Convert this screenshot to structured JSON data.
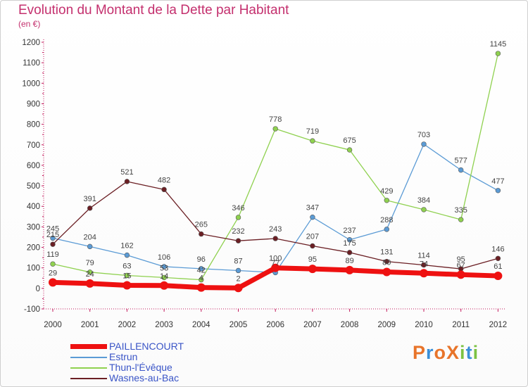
{
  "title": "Evolution du Montant de la Dette par Habitant",
  "subtitle": "(en €)",
  "logo": {
    "text": "ProXiti",
    "colors": [
      "#e8742a",
      "#3a8fd8",
      "#e8742a",
      "#e8742a",
      "#7cc242",
      "#3a8fd8",
      "#7cc242"
    ]
  },
  "chart_data": {
    "type": "line",
    "title": "Evolution du Montant de la Dette par Habitant",
    "subtitle": "(en €)",
    "xlabel": "",
    "ylabel": "",
    "ylim": [
      -100,
      1200
    ],
    "grid": false,
    "legend_position": "bottom-left",
    "x": [
      "2000",
      "2001",
      "2002",
      "2003",
      "2004",
      "2005",
      "2006",
      "2007",
      "2008",
      "2009",
      "2010",
      "2011",
      "2012"
    ],
    "y_ticks": [
      -100,
      0,
      100,
      200,
      300,
      400,
      500,
      600,
      700,
      800,
      900,
      1000,
      1100,
      1200
    ],
    "series": [
      {
        "name": "PAILLENCOURT",
        "color": "#ee1111",
        "values": [
          29,
          24,
          15,
          14,
          4,
          2,
          100,
          95,
          89,
          80,
          74,
          67,
          61
        ],
        "labels": [
          "29",
          "24",
          "15",
          "14",
          "4",
          "2",
          "100",
          "95",
          "89",
          "80",
          "74",
          "67",
          "61"
        ]
      },
      {
        "name": "Estrun",
        "color": "#5b9bd5",
        "values": [
          245,
          204,
          162,
          106,
          96,
          87,
          77,
          347,
          237,
          288,
          703,
          577,
          477
        ],
        "labels": [
          "245",
          "204",
          "162",
          "106",
          "96",
          "87",
          "77",
          "347",
          "237",
          "288",
          "703",
          "577",
          "477"
        ]
      },
      {
        "name": "Thun-l'Évêque",
        "color": "#8fd14f",
        "values": [
          119,
          79,
          63,
          53,
          42,
          346,
          778,
          719,
          675,
          429,
          384,
          335,
          1145
        ],
        "labels": [
          "119",
          "79",
          "63",
          "53",
          "42",
          "346",
          "778",
          "719",
          "675",
          "429",
          "384",
          "335",
          "1145"
        ]
      },
      {
        "name": "Wasnes-au-Bac",
        "color": "#6b1f24",
        "values": [
          215,
          391,
          521,
          482,
          265,
          232,
          243,
          207,
          175,
          131,
          114,
          95,
          146
        ],
        "labels": [
          "215",
          "391",
          "521",
          "482",
          "265",
          "232",
          "243",
          "207",
          "175",
          "131",
          "114",
          "95",
          "146"
        ]
      }
    ]
  }
}
